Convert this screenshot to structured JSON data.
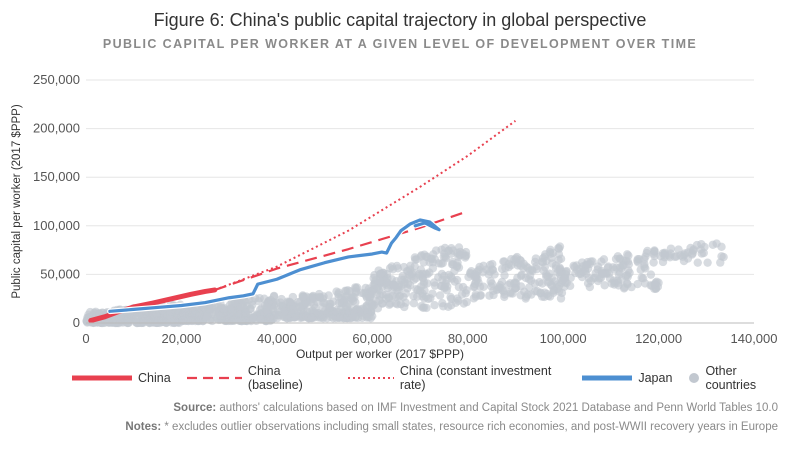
{
  "header": {
    "title": "Figure 6: China's public capital trajectory in global perspective",
    "subtitle": "PUBLIC CAPITAL PER WORKER AT A GIVEN LEVEL OF DEVELOPMENT OVER TIME"
  },
  "chart_data": {
    "type": "scatter",
    "title": "Figure 6: China's public capital trajectory in global perspective",
    "subtitle": "PUBLIC CAPITAL PER WORKER AT A GIVEN LEVEL OF DEVELOPMENT OVER TIME",
    "xlabel": "Output per worker (2017 $PPP)",
    "ylabel": "Public capital per worker (2017 $PPP)",
    "xlim": [
      0,
      140000
    ],
    "ylim": [
      0,
      250000
    ],
    "x_ticks": [
      "0",
      "20,000",
      "40,000",
      "60,000",
      "80,000",
      "100,000",
      "120,000",
      "140,000"
    ],
    "y_ticks": [
      "0",
      "50,000",
      "100,000",
      "150,000",
      "200,000",
      "250,000"
    ],
    "grid": "horizontal",
    "legend_position": "bottom",
    "series": [
      {
        "name": "China",
        "style": "line",
        "color": "#e8404f",
        "x": [
          1000,
          4000,
          7000,
          10000,
          14000,
          18000,
          22000,
          25000,
          27000
        ],
        "y": [
          2500,
          6500,
          12000,
          16500,
          20500,
          25000,
          29500,
          32500,
          34000
        ]
      },
      {
        "name": "China (baseline)",
        "style": "dashed",
        "color": "#e8404f",
        "x": [
          27000,
          40000,
          55000,
          70000,
          80000
        ],
        "y": [
          34000,
          56000,
          76000,
          98000,
          115000
        ]
      },
      {
        "name": "China (constant investment rate)",
        "style": "dotted",
        "color": "#e8404f",
        "x": [
          27000,
          40000,
          55000,
          70000,
          80000,
          90000
        ],
        "y": [
          34000,
          58000,
          95000,
          140000,
          172000,
          208000
        ]
      },
      {
        "name": "Japan",
        "style": "line",
        "color": "#4d8fd1",
        "x": [
          5000,
          10000,
          15000,
          20000,
          25000,
          30000,
          33000,
          35000,
          36000,
          40000,
          45000,
          50000,
          55000,
          60000,
          62000,
          63000,
          64000,
          65000,
          66000,
          68000,
          70000,
          72000,
          73000,
          74000,
          73000,
          71000,
          69000
        ],
        "y": [
          12000,
          14000,
          16000,
          18000,
          21000,
          26000,
          28000,
          30000,
          40000,
          45000,
          55000,
          62000,
          68000,
          71000,
          73000,
          72000,
          82000,
          88000,
          95000,
          102000,
          106000,
          104000,
          100000,
          96000,
          98000,
          103000,
          100000
        ]
      },
      {
        "name": "Other countries",
        "style": "points",
        "color": "#c2c8d0",
        "groups": [
          {
            "x_range": [
              0,
              20000
            ],
            "y_range": [
              0,
              20000
            ]
          },
          {
            "x_range": [
              20000,
              40000
            ],
            "y_range": [
              2000,
              30000
            ]
          },
          {
            "x_range": [
              40000,
              60000
            ],
            "y_range": [
              5000,
              40000
            ]
          },
          {
            "x_range": [
              60000,
              80000
            ],
            "y_range": [
              15000,
              85000
            ]
          },
          {
            "x_range": [
              80000,
              100000
            ],
            "y_range": [
              25000,
              80000
            ]
          },
          {
            "x_range": [
              100000,
              120000
            ],
            "y_range": [
              35000,
              78000
            ]
          },
          {
            "x_range": [
              120000,
              134000
            ],
            "y_range": [
              62000,
              85000
            ]
          }
        ]
      }
    ]
  },
  "legend": {
    "china": "China",
    "baseline": "China (baseline)",
    "constant": "China (constant investment rate)",
    "japan": "Japan",
    "other": "Other countries"
  },
  "footer": {
    "source_label": "Source:",
    "source_text": " authors' calculations based on IMF Investment and Capital Stock 2021 Database and Penn World Tables 10.0",
    "notes_label": "Notes:",
    "notes_text": " * excludes outlier observations including small states, resource rich economies, and post-WWII recovery years in Europe"
  },
  "colors": {
    "china": "#e8404f",
    "japan": "#4d8fd1",
    "other": "#c2c8d0",
    "grid": "#e6e6e6"
  }
}
